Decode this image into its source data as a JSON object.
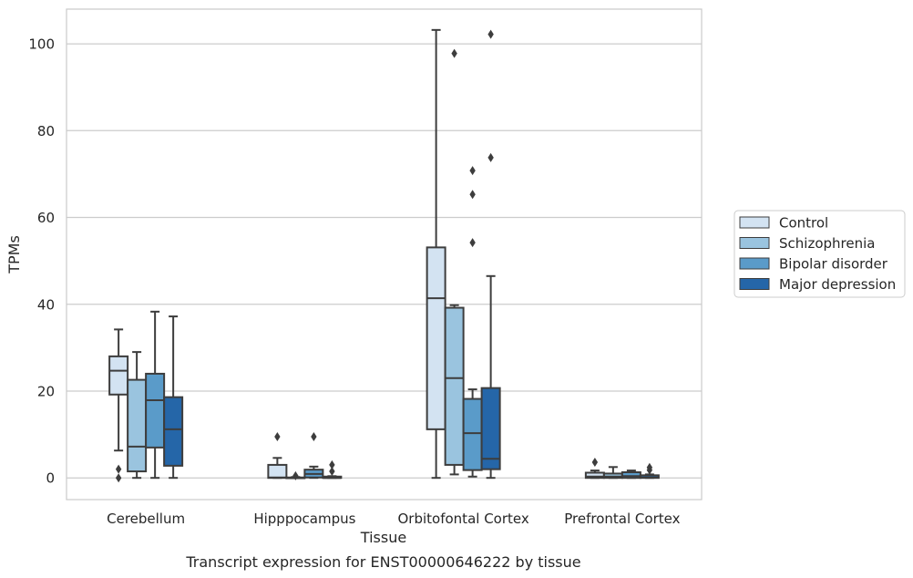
{
  "chart_data": {
    "type": "box",
    "title": "",
    "caption": "Transcript expression for ENST00000646222 by tissue",
    "xlabel": "Tissue",
    "ylabel": "TPMs",
    "ylim": [
      -5,
      108
    ],
    "yticks": [
      0,
      20,
      40,
      60,
      80,
      100
    ],
    "grid": "horizontal",
    "legend_position": "right",
    "categories": [
      "Cerebellum",
      "Hipppocampus",
      "Orbitofontal Cortex",
      "Prefrontal Cortex"
    ],
    "series": [
      {
        "name": "Control",
        "color": "#d3e3f2",
        "boxes": [
          {
            "whislo": 6.3,
            "q1": 19.2,
            "med": 24.7,
            "q3": 28.0,
            "whishi": 34.2,
            "fliers": [
              0.0,
              2.0
            ]
          },
          {
            "whislo": 0.0,
            "q1": 0.0,
            "med": 0.1,
            "q3": 3.0,
            "whishi": 4.6,
            "fliers": [
              9.5
            ]
          },
          {
            "whislo": 0.0,
            "q1": 11.2,
            "med": 41.4,
            "q3": 53.1,
            "whishi": 103.2,
            "fliers": []
          },
          {
            "whislo": 0.0,
            "q1": 0.0,
            "med": 0.3,
            "q3": 1.2,
            "whishi": 1.7,
            "fliers": [
              3.6
            ]
          }
        ]
      },
      {
        "name": "Schizophrenia",
        "color": "#9ac4df",
        "boxes": [
          {
            "whislo": 0.0,
            "q1": 1.5,
            "med": 7.2,
            "q3": 22.6,
            "whishi": 29.0,
            "fliers": []
          },
          {
            "whislo": 0.0,
            "q1": 0.0,
            "med": 0.0,
            "q3": 0.1,
            "whishi": 0.2,
            "fliers": [
              0.5
            ]
          },
          {
            "whislo": 0.8,
            "q1": 3.0,
            "med": 23.0,
            "q3": 39.2,
            "whishi": 39.8,
            "fliers": [
              97.8
            ]
          },
          {
            "whislo": 0.0,
            "q1": 0.0,
            "med": 0.3,
            "q3": 1.0,
            "whishi": 2.5,
            "fliers": []
          }
        ]
      },
      {
        "name": "Bipolar disorder",
        "color": "#5a9bc9",
        "boxes": [
          {
            "whislo": 0.0,
            "q1": 7.0,
            "med": 17.9,
            "q3": 24.0,
            "whishi": 38.3,
            "fliers": []
          },
          {
            "whislo": 0.0,
            "q1": 0.1,
            "med": 0.9,
            "q3": 1.9,
            "whishi": 2.6,
            "fliers": [
              9.5
            ]
          },
          {
            "whislo": 0.3,
            "q1": 1.8,
            "med": 10.3,
            "q3": 18.2,
            "whishi": 20.4,
            "fliers": [
              54.2,
              65.3,
              70.8
            ]
          },
          {
            "whislo": 0.0,
            "q1": 0.0,
            "med": 0.4,
            "q3": 1.3,
            "whishi": 1.7,
            "fliers": []
          }
        ]
      },
      {
        "name": "Major depression",
        "color": "#2566a8",
        "boxes": [
          {
            "whislo": 0.0,
            "q1": 2.8,
            "med": 11.2,
            "q3": 18.6,
            "whishi": 37.2,
            "fliers": []
          },
          {
            "whislo": 0.0,
            "q1": 0.0,
            "med": 0.0,
            "q3": 0.3,
            "whishi": 0.4,
            "fliers": [
              1.5,
              3.0
            ]
          },
          {
            "whislo": 0.0,
            "q1": 2.0,
            "med": 4.4,
            "q3": 20.7,
            "whishi": 46.5,
            "fliers": [
              73.8,
              102.2
            ]
          },
          {
            "whislo": 0.0,
            "q1": 0.0,
            "med": 0.1,
            "q3": 0.6,
            "whishi": 0.8,
            "fliers": [
              1.8,
              2.4
            ]
          }
        ]
      }
    ]
  }
}
